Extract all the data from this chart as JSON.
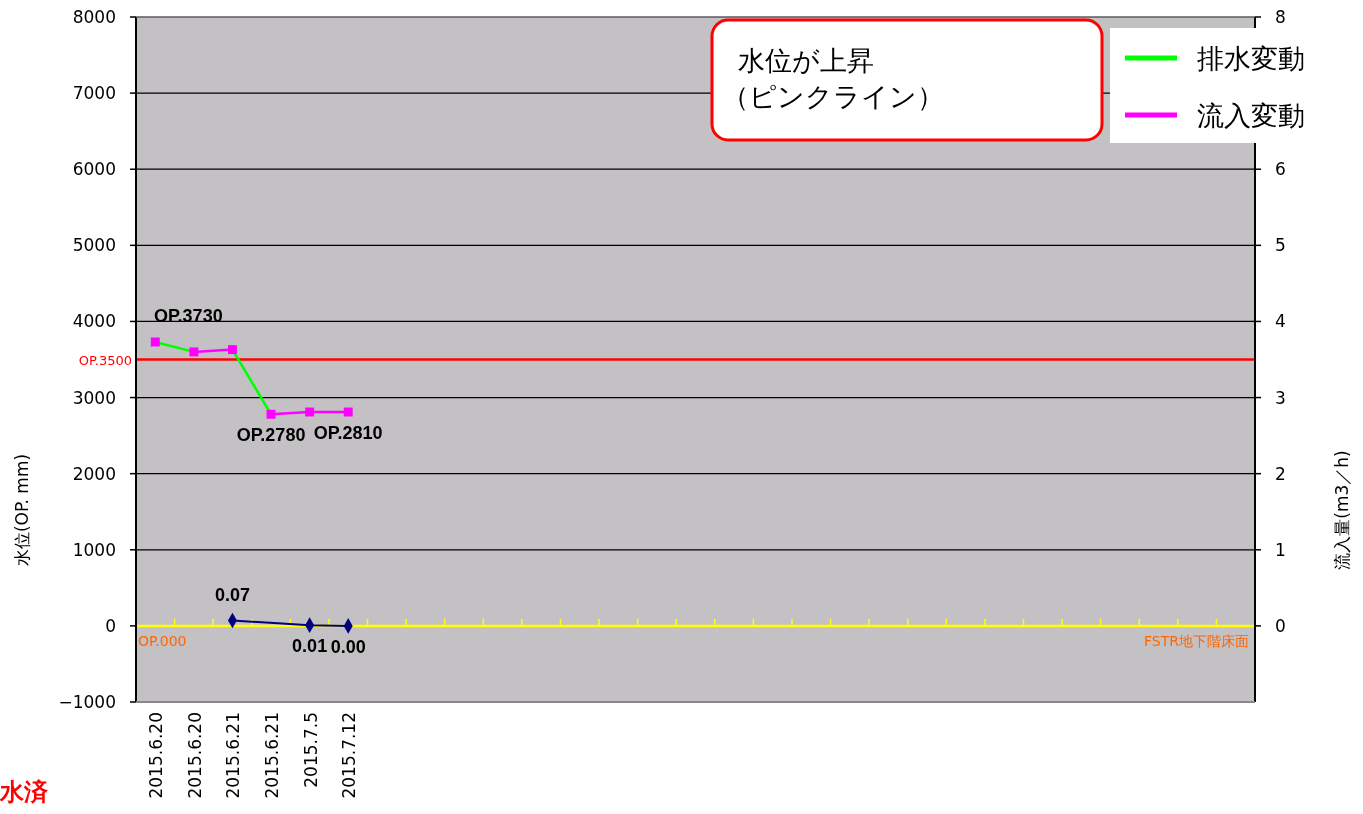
{
  "chart_data": {
    "type": "line",
    "ylabel": "水位(OP.  mm)",
    "y2label": "流入量(m3／h)",
    "categories": [
      "2015.6.20",
      "2015.6.20",
      "2015.6.21",
      "2015.6.21",
      "2015.7.5",
      "2015.7.12",
      null,
      null,
      null,
      null,
      null,
      null,
      null,
      null,
      null,
      null,
      null,
      null,
      null,
      null,
      null,
      null,
      null,
      null,
      null,
      null,
      null,
      null,
      null
    ],
    "series": [
      {
        "name": "排水変動",
        "color": "#00ff00",
        "values": [
          3730,
          3600,
          null,
          null,
          null,
          null,
          null,
          null,
          null,
          null,
          null,
          null,
          null,
          null,
          null,
          null,
          null,
          null,
          null,
          null,
          null,
          null,
          null,
          null,
          null,
          null,
          null,
          null,
          null
        ]
      },
      {
        "name": "流入変動",
        "color": "#ff00ff",
        "values": [
          null,
          3600,
          3630,
          null,
          null,
          null,
          null,
          null,
          null,
          null,
          null,
          null,
          null,
          null,
          null,
          null,
          null,
          null,
          null,
          null,
          null,
          null,
          null,
          null,
          null,
          null,
          null,
          null,
          null
        ]
      },
      {
        "color": "#00ff00",
        "values": [
          null,
          null,
          3630,
          2780,
          null,
          null,
          null,
          null,
          null,
          null,
          null,
          null,
          null,
          null,
          null,
          null,
          null,
          null,
          null,
          null,
          null,
          null,
          null,
          null,
          null,
          null,
          null,
          null,
          null
        ]
      },
      {
        "color": "#ff00ff",
        "values": [
          null,
          null,
          null,
          2780,
          2810,
          2810,
          null,
          null,
          null,
          null,
          null,
          null,
          null,
          null,
          null,
          null,
          null,
          null,
          null,
          null,
          null,
          null,
          null,
          null,
          null,
          null,
          null,
          null,
          null
        ]
      },
      {
        "type": "scatter",
        "color": "#ff00ff",
        "marker": "square",
        "values": [
          3730,
          3600,
          3630,
          2780,
          2810,
          2810,
          null,
          null,
          null,
          null,
          null,
          null,
          null,
          null,
          null,
          null,
          null,
          null,
          null,
          null,
          null,
          null,
          null,
          null,
          null,
          null,
          null,
          null,
          null
        ],
        "value_labels": [
          "OP.3730",
          null,
          null,
          "OP.2780",
          null,
          "OP.2810",
          null,
          null,
          null,
          null,
          null,
          null,
          null,
          null,
          null,
          null,
          null,
          null,
          null,
          null,
          null,
          null,
          null,
          null,
          null,
          null,
          null,
          null,
          null
        ]
      },
      {
        "type": "line",
        "axis": "y2",
        "color": "#000080",
        "marker": "diamond",
        "values": [
          null,
          null,
          0.07,
          null,
          0.01,
          0.0,
          null,
          null,
          null,
          null,
          null,
          null,
          null,
          null,
          null,
          null,
          null,
          null,
          null,
          null,
          null,
          null,
          null,
          null,
          null,
          null,
          null,
          null,
          null
        ],
        "value_labels": [
          null,
          null,
          "0.07",
          null,
          "0.01",
          "0.00",
          null,
          null,
          null,
          null,
          null,
          null,
          null,
          null,
          null,
          null,
          null,
          null,
          null,
          null,
          null,
          null,
          null,
          null,
          null,
          null,
          null,
          null,
          null
        ]
      }
    ],
    "ylim": [
      -1000,
      8000
    ],
    "yticks": [
      -1000,
      0,
      1000,
      2000,
      3000,
      4000,
      5000,
      6000,
      7000,
      8000
    ],
    "y2lim": [
      -1,
      8
    ],
    "y2ticks": [
      0,
      1,
      2,
      3,
      4,
      5,
      6,
      8
    ],
    "grid": "y",
    "legend": "top right",
    "ref_lines": [
      {
        "axis": "y",
        "value": 3500,
        "label": "OP.3500",
        "color": "#ff0000"
      },
      {
        "axis": "y",
        "value": 0,
        "color": "#ffff00"
      }
    ],
    "annotations": [
      "水位が上昇",
      "（ピンクライン）",
      "水済",
      {
        "text": "OP.000",
        "y": 0
      },
      {
        "text": "FSTR地下階床面",
        "y": 0
      }
    ]
  }
}
